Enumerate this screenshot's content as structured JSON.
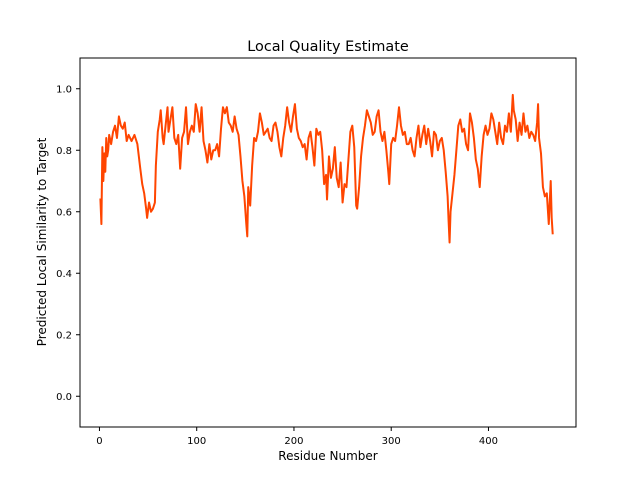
{
  "chart_data": {
    "type": "line",
    "title": "Local Quality Estimate",
    "xlabel": "Residue Number",
    "ylabel": "Predicted Local Similarity to Target",
    "xlim": [
      -20,
      490
    ],
    "ylim": [
      -0.1,
      1.1
    ],
    "xticks": [
      0,
      100,
      200,
      300,
      400
    ],
    "xtick_labels": [
      "0",
      "100",
      "200",
      "300",
      "400"
    ],
    "yticks": [
      0.0,
      0.2,
      0.4,
      0.6,
      0.8,
      1.0
    ],
    "ytick_labels": [
      "0.0",
      "0.2",
      "0.4",
      "0.6",
      "0.8",
      "1.0"
    ],
    "grid": false,
    "legend": "none",
    "series": [
      {
        "color": "#ff4500",
        "points": [
          [
            1,
            0.64
          ],
          [
            2,
            0.56
          ],
          [
            3,
            0.81
          ],
          [
            4,
            0.7
          ],
          [
            5,
            0.79
          ],
          [
            6,
            0.73
          ],
          [
            7,
            0.84
          ],
          [
            8,
            0.78
          ],
          [
            9,
            0.8
          ],
          [
            10,
            0.85
          ],
          [
            12,
            0.82
          ],
          [
            14,
            0.86
          ],
          [
            16,
            0.88
          ],
          [
            18,
            0.84
          ],
          [
            20,
            0.91
          ],
          [
            22,
            0.88
          ],
          [
            24,
            0.87
          ],
          [
            26,
            0.89
          ],
          [
            28,
            0.83
          ],
          [
            30,
            0.85
          ],
          [
            33,
            0.83
          ],
          [
            36,
            0.85
          ],
          [
            39,
            0.82
          ],
          [
            42,
            0.74
          ],
          [
            44,
            0.69
          ],
          [
            46,
            0.66
          ],
          [
            48,
            0.61
          ],
          [
            49,
            0.58
          ],
          [
            51,
            0.63
          ],
          [
            53,
            0.6
          ],
          [
            55,
            0.61
          ],
          [
            57,
            0.63
          ],
          [
            58,
            0.75
          ],
          [
            60,
            0.86
          ],
          [
            62,
            0.9
          ],
          [
            63,
            0.93
          ],
          [
            65,
            0.84
          ],
          [
            66,
            0.82
          ],
          [
            68,
            0.88
          ],
          [
            70,
            0.94
          ],
          [
            71,
            0.86
          ],
          [
            73,
            0.9
          ],
          [
            75,
            0.94
          ],
          [
            77,
            0.84
          ],
          [
            79,
            0.82
          ],
          [
            81,
            0.85
          ],
          [
            83,
            0.74
          ],
          [
            85,
            0.84
          ],
          [
            87,
            0.86
          ],
          [
            89,
            0.94
          ],
          [
            91,
            0.82
          ],
          [
            93,
            0.86
          ],
          [
            95,
            0.88
          ],
          [
            97,
            0.86
          ],
          [
            99,
            0.95
          ],
          [
            101,
            0.92
          ],
          [
            103,
            0.86
          ],
          [
            105,
            0.94
          ],
          [
            107,
            0.83
          ],
          [
            109,
            0.8
          ],
          [
            111,
            0.76
          ],
          [
            113,
            0.82
          ],
          [
            115,
            0.77
          ],
          [
            117,
            0.8
          ],
          [
            119,
            0.8
          ],
          [
            121,
            0.82
          ],
          [
            123,
            0.78
          ],
          [
            125,
            0.87
          ],
          [
            127,
            0.94
          ],
          [
            129,
            0.92
          ],
          [
            131,
            0.94
          ],
          [
            133,
            0.89
          ],
          [
            135,
            0.88
          ],
          [
            137,
            0.86
          ],
          [
            139,
            0.91
          ],
          [
            141,
            0.87
          ],
          [
            143,
            0.85
          ],
          [
            145,
            0.78
          ],
          [
            147,
            0.7
          ],
          [
            149,
            0.65
          ],
          [
            151,
            0.56
          ],
          [
            152,
            0.52
          ],
          [
            153,
            0.68
          ],
          [
            155,
            0.62
          ],
          [
            157,
            0.75
          ],
          [
            159,
            0.84
          ],
          [
            161,
            0.83
          ],
          [
            163,
            0.86
          ],
          [
            165,
            0.92
          ],
          [
            167,
            0.89
          ],
          [
            169,
            0.85
          ],
          [
            171,
            0.86
          ],
          [
            173,
            0.87
          ],
          [
            175,
            0.84
          ],
          [
            177,
            0.83
          ],
          [
            179,
            0.88
          ],
          [
            181,
            0.89
          ],
          [
            183,
            0.86
          ],
          [
            185,
            0.81
          ],
          [
            187,
            0.78
          ],
          [
            189,
            0.84
          ],
          [
            191,
            0.88
          ],
          [
            193,
            0.94
          ],
          [
            195,
            0.89
          ],
          [
            197,
            0.86
          ],
          [
            199,
            0.91
          ],
          [
            201,
            0.95
          ],
          [
            203,
            0.87
          ],
          [
            205,
            0.84
          ],
          [
            207,
            0.83
          ],
          [
            209,
            0.81
          ],
          [
            211,
            0.82
          ],
          [
            213,
            0.77
          ],
          [
            215,
            0.84
          ],
          [
            217,
            0.86
          ],
          [
            219,
            0.81
          ],
          [
            221,
            0.75
          ],
          [
            223,
            0.87
          ],
          [
            225,
            0.85
          ],
          [
            227,
            0.86
          ],
          [
            229,
            0.8
          ],
          [
            231,
            0.69
          ],
          [
            233,
            0.72
          ],
          [
            234,
            0.64
          ],
          [
            236,
            0.78
          ],
          [
            238,
            0.71
          ],
          [
            240,
            0.74
          ],
          [
            242,
            0.81
          ],
          [
            244,
            0.71
          ],
          [
            246,
            0.68
          ],
          [
            248,
            0.76
          ],
          [
            250,
            0.63
          ],
          [
            252,
            0.69
          ],
          [
            254,
            0.68
          ],
          [
            256,
            0.77
          ],
          [
            258,
            0.86
          ],
          [
            260,
            0.88
          ],
          [
            262,
            0.81
          ],
          [
            264,
            0.62
          ],
          [
            265,
            0.61
          ],
          [
            267,
            0.68
          ],
          [
            269,
            0.78
          ],
          [
            271,
            0.84
          ],
          [
            273,
            0.88
          ],
          [
            275,
            0.93
          ],
          [
            277,
            0.91
          ],
          [
            279,
            0.89
          ],
          [
            281,
            0.85
          ],
          [
            283,
            0.86
          ],
          [
            285,
            0.91
          ],
          [
            287,
            0.93
          ],
          [
            289,
            0.86
          ],
          [
            291,
            0.83
          ],
          [
            293,
            0.86
          ],
          [
            295,
            0.8
          ],
          [
            297,
            0.73
          ],
          [
            298,
            0.69
          ],
          [
            300,
            0.82
          ],
          [
            302,
            0.84
          ],
          [
            304,
            0.83
          ],
          [
            306,
            0.88
          ],
          [
            308,
            0.94
          ],
          [
            310,
            0.88
          ],
          [
            312,
            0.85
          ],
          [
            314,
            0.86
          ],
          [
            316,
            0.82
          ],
          [
            318,
            0.82
          ],
          [
            320,
            0.84
          ],
          [
            322,
            0.8
          ],
          [
            324,
            0.78
          ],
          [
            326,
            0.84
          ],
          [
            328,
            0.88
          ],
          [
            330,
            0.81
          ],
          [
            332,
            0.85
          ],
          [
            334,
            0.88
          ],
          [
            336,
            0.82
          ],
          [
            338,
            0.87
          ],
          [
            340,
            0.83
          ],
          [
            342,
            0.78
          ],
          [
            344,
            0.86
          ],
          [
            346,
            0.85
          ],
          [
            348,
            0.8
          ],
          [
            350,
            0.83
          ],
          [
            352,
            0.84
          ],
          [
            354,
            0.8
          ],
          [
            356,
            0.73
          ],
          [
            358,
            0.65
          ],
          [
            359,
            0.57
          ],
          [
            360,
            0.5
          ],
          [
            361,
            0.6
          ],
          [
            363,
            0.66
          ],
          [
            365,
            0.72
          ],
          [
            367,
            0.8
          ],
          [
            369,
            0.88
          ],
          [
            371,
            0.9
          ],
          [
            373,
            0.86
          ],
          [
            375,
            0.87
          ],
          [
            377,
            0.82
          ],
          [
            379,
            0.8
          ],
          [
            381,
            0.92
          ],
          [
            383,
            0.89
          ],
          [
            385,
            0.84
          ],
          [
            387,
            0.77
          ],
          [
            389,
            0.74
          ],
          [
            391,
            0.68
          ],
          [
            393,
            0.78
          ],
          [
            395,
            0.85
          ],
          [
            397,
            0.88
          ],
          [
            399,
            0.85
          ],
          [
            401,
            0.87
          ],
          [
            403,
            0.92
          ],
          [
            405,
            0.9
          ],
          [
            407,
            0.86
          ],
          [
            409,
            0.82
          ],
          [
            411,
            0.89
          ],
          [
            413,
            0.84
          ],
          [
            415,
            0.82
          ],
          [
            417,
            0.88
          ],
          [
            419,
            0.86
          ],
          [
            421,
            0.92
          ],
          [
            423,
            0.86
          ],
          [
            425,
            0.98
          ],
          [
            426,
            0.93
          ],
          [
            428,
            0.9
          ],
          [
            430,
            0.83
          ],
          [
            432,
            0.89
          ],
          [
            434,
            0.85
          ],
          [
            436,
            0.92
          ],
          [
            438,
            0.86
          ],
          [
            440,
            0.88
          ],
          [
            442,
            0.84
          ],
          [
            444,
            0.86
          ],
          [
            446,
            0.85
          ],
          [
            448,
            0.83
          ],
          [
            450,
            0.89
          ],
          [
            451,
            0.95
          ],
          [
            452,
            0.84
          ],
          [
            454,
            0.79
          ],
          [
            456,
            0.68
          ],
          [
            458,
            0.65
          ],
          [
            460,
            0.66
          ],
          [
            462,
            0.56
          ],
          [
            464,
            0.7
          ],
          [
            465,
            0.58
          ],
          [
            466,
            0.53
          ]
        ]
      }
    ]
  }
}
